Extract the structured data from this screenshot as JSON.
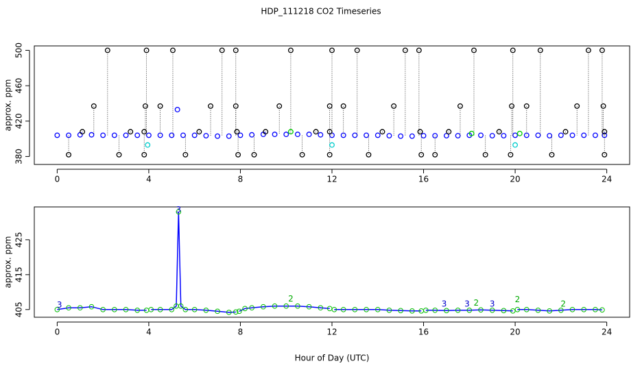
{
  "chart_data": [
    {
      "type": "scatter",
      "title": "HDP_111218  CO2 Timeseries",
      "ylabel": "approx. ppm",
      "xlim": [
        -1,
        25
      ],
      "ylim": [
        371,
        505
      ],
      "xticks": [
        0,
        4,
        8,
        12,
        16,
        20,
        24
      ],
      "yticks": [
        380,
        420,
        460,
        500
      ],
      "series": [
        {
          "color": "#0000ff",
          "x": [
            0,
            0.5,
            1,
            1.5,
            2,
            2.5,
            3,
            3.5,
            4,
            4.5,
            5,
            5.5,
            6,
            6.5,
            7,
            7.5,
            8,
            8.5,
            9,
            9.5,
            10,
            10.5,
            11,
            11.5,
            12,
            12.5,
            13,
            13.5,
            14,
            14.5,
            15,
            15.5,
            16,
            16.5,
            17,
            17.5,
            18,
            18.5,
            19,
            19.5,
            20,
            20.5,
            21,
            21.5,
            22,
            22.5,
            23,
            23.5,
            23.9
          ],
          "values": [
            404,
            404,
            404.5,
            404.5,
            404,
            404,
            404,
            404,
            404,
            404,
            404,
            404,
            404,
            403.5,
            403,
            403,
            404,
            404.5,
            405,
            405,
            405,
            405,
            405,
            404.5,
            404,
            404,
            404,
            404,
            404,
            403.5,
            403,
            403,
            403.5,
            403.5,
            403.5,
            403.5,
            404,
            404,
            403.5,
            403.5,
            404,
            404,
            404,
            403.5,
            404,
            404,
            404,
            404,
            404
          ]
        },
        {
          "color": "#000000",
          "stems": true,
          "x": [
            0.5,
            1.1,
            1.6,
            2.2,
            2.7,
            3.2,
            3.8,
            3.8,
            3.85,
            3.9,
            4.5,
            5.05,
            5.6,
            6.2,
            6.7,
            7.2,
            7.8,
            7.8,
            7.85,
            7.9,
            8.6,
            9.1,
            9.7,
            10.2,
            10.7,
            11.3,
            11.9,
            11.9,
            11.9,
            12,
            12.5,
            13.1,
            13.6,
            14.2,
            14.7,
            15.2,
            15.8,
            15.85,
            15.9,
            16.5,
            17.1,
            17.6,
            18.2,
            18.7,
            19.3,
            19.8,
            19.85,
            19.9,
            20.5,
            21.1,
            21.6,
            22.2,
            22.7,
            23.2,
            23.8,
            23.85,
            23.9,
            23.9
          ],
          "values": [
            382,
            408,
            437,
            500,
            382,
            408,
            382,
            408,
            437,
            500,
            437,
            500,
            382,
            408,
            437,
            500,
            500,
            437,
            408,
            382,
            382,
            408,
            437,
            500,
            382,
            408,
            382,
            408,
            437,
            500,
            437,
            500,
            382,
            408,
            437,
            500,
            500,
            408,
            382,
            382,
            408,
            437,
            500,
            382,
            408,
            382,
            437,
            500,
            437,
            500,
            382,
            408,
            437,
            500,
            500,
            437,
            408,
            382
          ]
        },
        {
          "color": "#00cccc",
          "x": [
            3.95,
            12.0,
            20.0
          ],
          "values": [
            393,
            393,
            393
          ]
        },
        {
          "color": "#00cc00",
          "x": [
            10.2,
            18.1,
            20.2
          ],
          "values": [
            408,
            406,
            406
          ]
        },
        {
          "color": "#0000ff",
          "x": [
            5.25
          ],
          "values": [
            433
          ]
        }
      ]
    },
    {
      "type": "line",
      "ylabel": "approx. ppm",
      "xlabel": "Hour of Day (UTC)",
      "xlim": [
        -1,
        25
      ],
      "ylim": [
        402.8,
        434.4
      ],
      "xticks": [
        0,
        4,
        8,
        12,
        16,
        20,
        24
      ],
      "yticks": [
        405,
        415,
        425
      ],
      "series": [
        {
          "color": "#0000ff",
          "marker_color": "#00bb00",
          "x": [
            0,
            0.5,
            1,
            1.5,
            2,
            2.5,
            3,
            3.5,
            3.9,
            4.0,
            4.1,
            4.5,
            5,
            5.2,
            5.3,
            5.4,
            5.6,
            6,
            6.5,
            7,
            7.5,
            7.8,
            7.9,
            7.95,
            8.2,
            8.5,
            9,
            9.5,
            10,
            10.5,
            11,
            11.5,
            11.9,
            12.0,
            12.1,
            12.5,
            13,
            13.5,
            14,
            14.5,
            15,
            15.5,
            15.9,
            16.0,
            16.1,
            16.5,
            17,
            17.5,
            18,
            18.5,
            19,
            19.5,
            19.9,
            20.0,
            20.1,
            20.5,
            21,
            21.5,
            22,
            22.5,
            23,
            23.5,
            23.8
          ],
          "values": [
            405,
            405.5,
            405.5,
            405.8,
            405,
            405,
            405,
            404.8,
            404.8,
            null,
            405,
            405,
            405,
            406,
            433,
            406,
            405,
            405,
            404.8,
            404.5,
            404.2,
            404.3,
            null,
            404.5,
            405.3,
            405.5,
            405.8,
            406,
            406,
            406,
            405.8,
            405.5,
            405.3,
            null,
            405,
            405,
            405,
            405,
            405,
            404.8,
            404.7,
            404.6,
            404.6,
            null,
            404.8,
            404.8,
            404.7,
            404.8,
            404.8,
            404.9,
            404.8,
            404.7,
            404.6,
            null,
            405,
            405,
            404.8,
            404.6,
            404.8,
            405,
            405,
            405,
            404.9
          ]
        }
      ],
      "annotations": [
        {
          "x": 5.3,
          "y": 433.5,
          "text": "3",
          "color": "#0000cc"
        },
        {
          "x": 0.1,
          "y": 406.2,
          "text": "3",
          "color": "#0000cc"
        },
        {
          "x": 10.2,
          "y": 408,
          "text": "2",
          "color": "#00aa00"
        },
        {
          "x": 16.9,
          "y": 406.5,
          "text": "3",
          "color": "#0000cc"
        },
        {
          "x": 17.9,
          "y": 406.5,
          "text": "3",
          "color": "#0000cc"
        },
        {
          "x": 18.3,
          "y": 406.8,
          "text": "2",
          "color": "#00aa00"
        },
        {
          "x": 19.0,
          "y": 406.5,
          "text": "3",
          "color": "#0000cc"
        },
        {
          "x": 20.1,
          "y": 407.8,
          "text": "2",
          "color": "#00aa00"
        },
        {
          "x": 22.1,
          "y": 406.5,
          "text": "2",
          "color": "#00aa00"
        }
      ]
    }
  ]
}
